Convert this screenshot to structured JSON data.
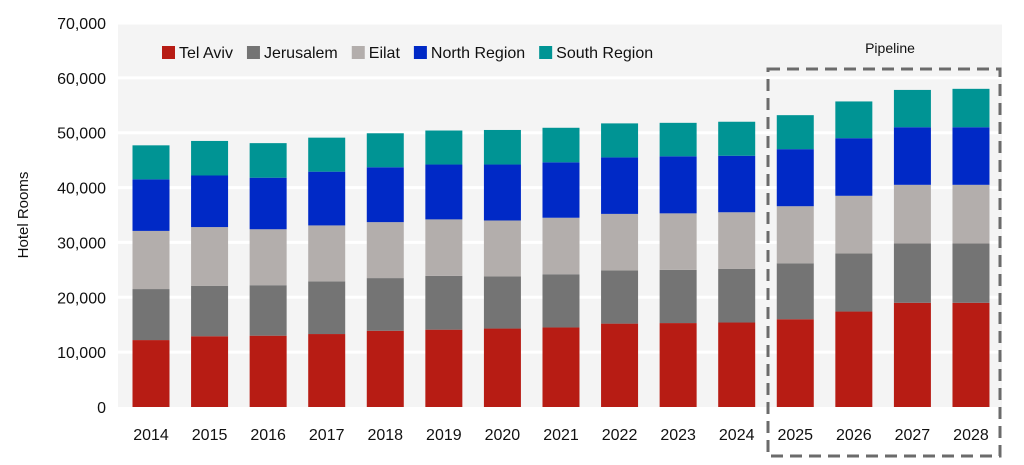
{
  "chart_data": {
    "type": "bar",
    "stacked": true,
    "title": "",
    "xlabel": "",
    "ylabel": "Hotel Rooms",
    "ylim": [
      0,
      70000
    ],
    "yticks": [
      0,
      10000,
      20000,
      30000,
      40000,
      50000,
      60000,
      70000
    ],
    "ytick_labels": [
      "0",
      "10,000",
      "20,000",
      "30,000",
      "40,000",
      "50,000",
      "60,000",
      "70,000"
    ],
    "grid": true,
    "legend_position": "top-left",
    "categories": [
      "2014",
      "2015",
      "2016",
      "2017",
      "2018",
      "2019",
      "2020",
      "2021",
      "2022",
      "2023",
      "2024",
      "2025",
      "2026",
      "2027",
      "2028"
    ],
    "series": [
      {
        "name": "Tel Aviv",
        "color": "#b71c14",
        "values": [
          12200,
          12900,
          13000,
          13300,
          13900,
          14100,
          14300,
          14500,
          15200,
          15300,
          15400,
          16000,
          17400,
          19000,
          19000
        ]
      },
      {
        "name": "Jerusalem",
        "color": "#747474",
        "values": [
          9300,
          9200,
          9200,
          9600,
          9600,
          9800,
          9500,
          9700,
          9700,
          9700,
          9800,
          10200,
          10600,
          10800,
          10800
        ]
      },
      {
        "name": "Eilat",
        "color": "#b3aeac",
        "values": [
          10600,
          10700,
          10200,
          10200,
          10200,
          10300,
          10200,
          10300,
          10300,
          10300,
          10300,
          10400,
          10500,
          10700,
          10700
        ]
      },
      {
        "name": "North Region",
        "color": "#0029c6",
        "values": [
          9400,
          9400,
          9400,
          9800,
          10000,
          10000,
          10200,
          10100,
          10300,
          10400,
          10300,
          10400,
          10500,
          10500,
          10500
        ]
      },
      {
        "name": "South Region",
        "color": "#009494",
        "values": [
          6200,
          6300,
          6300,
          6200,
          6200,
          6200,
          6300,
          6300,
          6200,
          6100,
          6200,
          6200,
          6700,
          6800,
          7000
        ]
      }
    ],
    "annotations": [
      {
        "text": "Pipeline",
        "applies_to": [
          "2025",
          "2026",
          "2027",
          "2028"
        ],
        "style": "dashed-box"
      }
    ]
  }
}
